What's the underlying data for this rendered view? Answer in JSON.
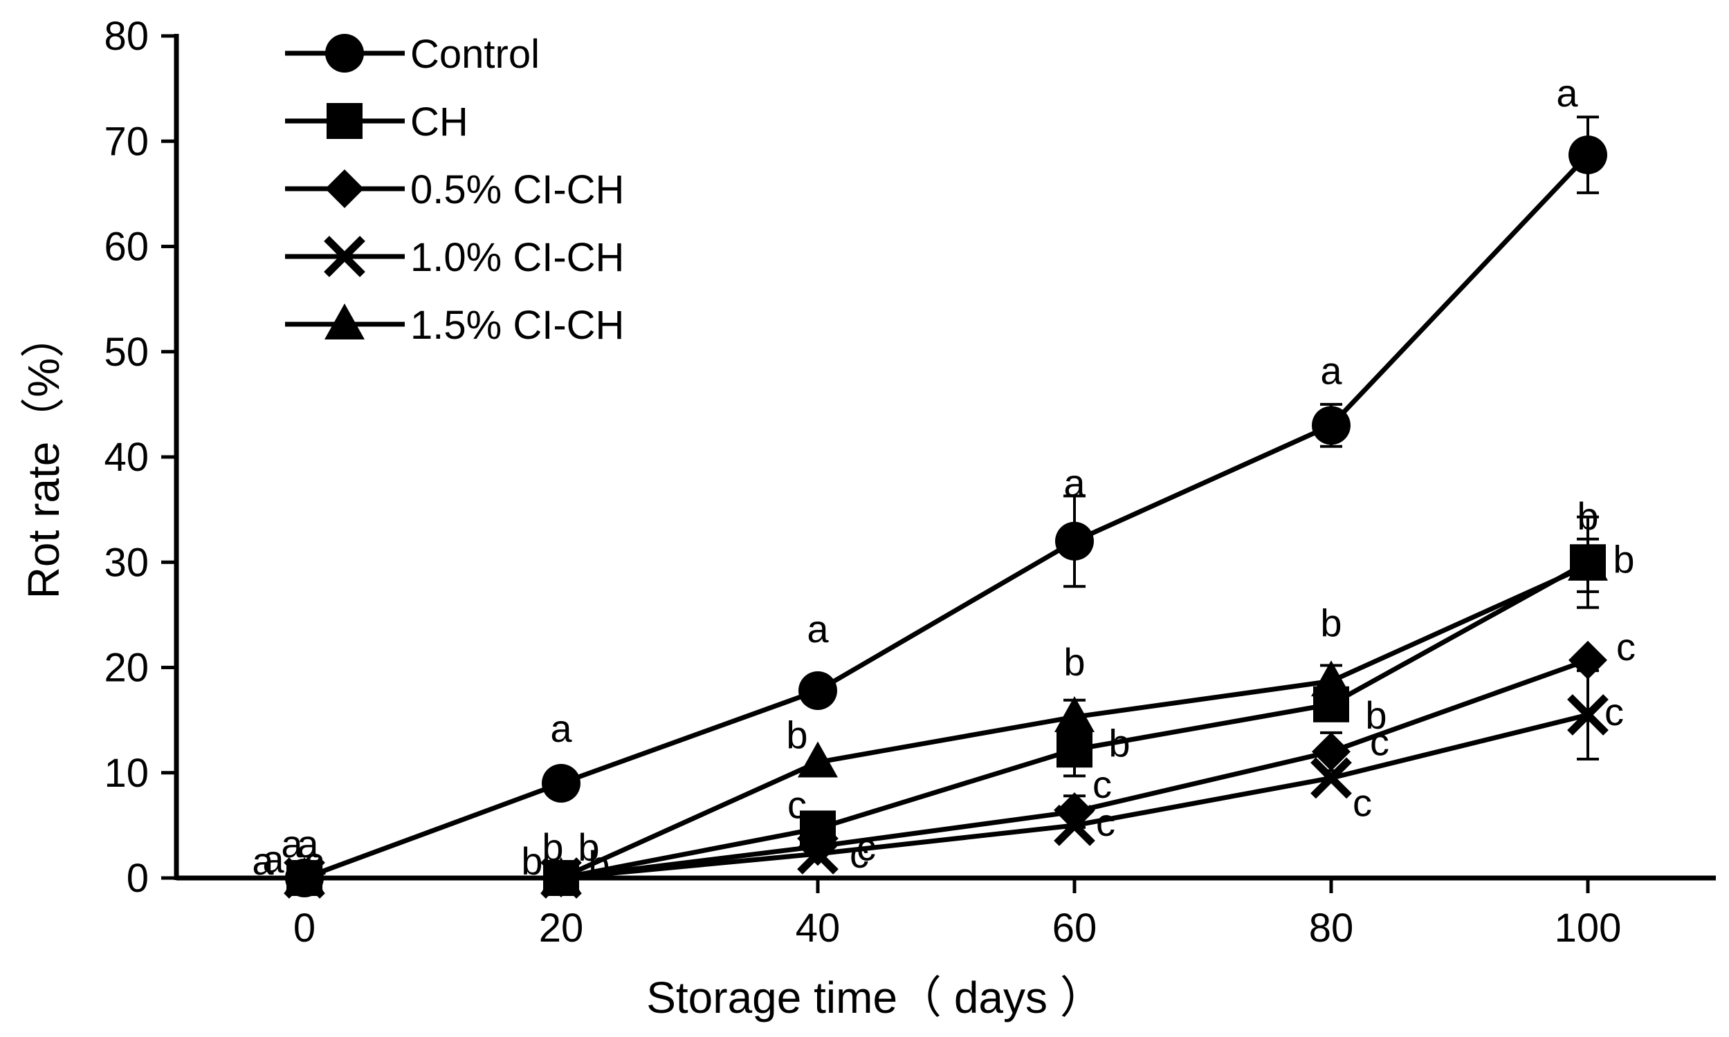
{
  "chart_data": {
    "type": "line",
    "title": "",
    "xlabel": "Storage time（ days ）",
    "ylabel": "Rot rate（%）",
    "x": [
      0,
      20,
      40,
      60,
      80,
      100
    ],
    "xticks": [
      "0",
      "20",
      "40",
      "60",
      "80",
      "100"
    ],
    "yticks": [
      "0",
      "10",
      "20",
      "30",
      "40",
      "50",
      "60",
      "70",
      "80"
    ],
    "xlim": [
      -10,
      110
    ],
    "ylim": [
      0,
      80
    ],
    "legend_position": "top-left",
    "grid": false,
    "series": [
      {
        "name": "Control",
        "marker": "circle",
        "values": [
          0,
          9.0,
          17.8,
          32.0,
          43.0,
          68.7
        ],
        "errors": [
          0,
          0,
          0,
          4.3,
          2.0,
          3.6
        ],
        "letters": [
          "a",
          "a",
          "a",
          "a",
          "a",
          "a"
        ]
      },
      {
        "name": "CH",
        "marker": "square",
        "values": [
          0,
          0,
          4.7,
          12.2,
          16.5,
          30.0
        ],
        "errors": [
          0,
          0,
          0,
          2.5,
          0,
          4.3
        ],
        "letters": [
          "a",
          "b",
          "c",
          "b",
          "b",
          "b"
        ]
      },
      {
        "name": "0.5% CI-CH",
        "marker": "diamond",
        "values": [
          0,
          0,
          3.0,
          6.3,
          12.0,
          20.7
        ],
        "errors": [
          0,
          0,
          0,
          1.5,
          1.8,
          0
        ],
        "letters": [
          "a",
          "b",
          "c",
          "c",
          "c",
          "c"
        ]
      },
      {
        "name": "1.0% CI-CH",
        "marker": "x",
        "values": [
          0,
          0,
          2.3,
          5.0,
          9.5,
          15.5
        ],
        "errors": [
          0,
          0,
          0,
          0,
          0,
          4.2
        ],
        "letters": [
          "a",
          "b",
          "c",
          "c",
          "c",
          "c"
        ]
      },
      {
        "name": "1.5% CI-CH",
        "marker": "triangle",
        "values": [
          0,
          0,
          11.0,
          15.3,
          18.7,
          29.7
        ],
        "errors": [
          0,
          0,
          0,
          1.6,
          1.5,
          2.5
        ],
        "letters": [
          "a",
          "b",
          "b",
          "b",
          "b",
          "b"
        ]
      }
    ]
  }
}
